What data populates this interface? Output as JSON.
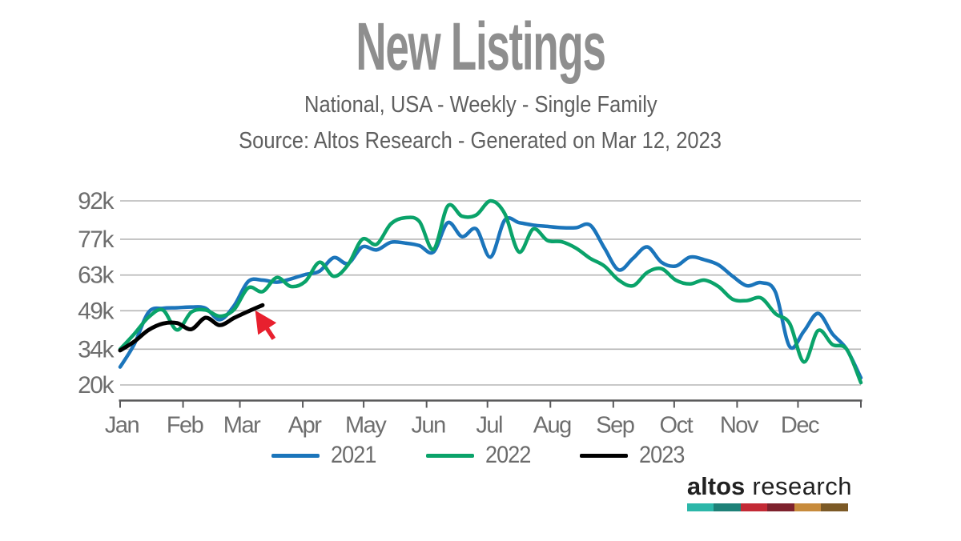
{
  "header": {
    "title": "New Listings",
    "subtitle": "National, USA - Weekly - Single Family",
    "source_line": "Source: Altos Research - Generated on Mar 12, 2023"
  },
  "chart_data": {
    "type": "line",
    "title": "New Listings",
    "subtitle": "National, USA - Weekly - Single Family",
    "source": "Source: Altos Research - Generated on Mar 12, 2023",
    "x_unit": "week of year (values start Jan 1, weekly spacing)",
    "y_unit": "new listings count (thousands)",
    "xtick_labels": [
      "Jan",
      "Feb",
      "Mar",
      "Apr",
      "May",
      "Jun",
      "Jul",
      "Aug",
      "Sep",
      "Oct",
      "Nov",
      "Dec"
    ],
    "ytick_labels": [
      "20k",
      "34k",
      "49k",
      "63k",
      "77k",
      "92k"
    ],
    "ytick_values": [
      20,
      34,
      49,
      63,
      77,
      92
    ],
    "ylim": [
      20,
      92
    ],
    "grid": true,
    "legend_position": "bottom",
    "series": [
      {
        "name": "2021",
        "color": "#1b75bb",
        "values": [
          27,
          36,
          48.5,
          50,
          50.2,
          50.5,
          50,
          45.5,
          51,
          60.5,
          61,
          60.2,
          61.5,
          63.2,
          64.5,
          69.8,
          67.5,
          74,
          72.8,
          75.8,
          75.5,
          74.5,
          72,
          83.5,
          78,
          81,
          70,
          84.5,
          83.5,
          82.5,
          82,
          81.5,
          81.5,
          82.5,
          73.5,
          65,
          69.5,
          74,
          68,
          66.5,
          70,
          69,
          67,
          62.5,
          58.8,
          60,
          56.3,
          35,
          41,
          48,
          40,
          34,
          22.8
        ]
      },
      {
        "name": "2022",
        "color": "#0aa36a",
        "values": [
          34,
          40,
          46.5,
          49.3,
          41.5,
          48.5,
          49.3,
          46.9,
          49.5,
          58,
          56.5,
          62,
          58.5,
          60.5,
          68,
          62.5,
          67,
          77,
          75,
          83,
          85.4,
          84,
          73,
          90,
          86,
          86.5,
          92,
          87,
          72,
          81,
          76.5,
          76,
          73.5,
          69.5,
          66.5,
          61,
          58.8,
          64,
          65.5,
          61,
          59.5,
          61,
          58.5,
          53.5,
          53,
          54,
          47.9,
          44,
          29,
          41.3,
          35.8,
          34,
          20.9
        ]
      },
      {
        "name": "2023",
        "color": "#000000",
        "values": [
          33.5,
          37,
          41.5,
          44,
          44.2,
          41.8,
          46.3,
          43.4,
          46.2,
          48.8,
          51.2
        ]
      }
    ],
    "annotation": {
      "shape": "arrow",
      "color": "#e8202e",
      "target_series": "2023",
      "target": "last-point",
      "meaning": "red arrow pointing at the latest 2023 weekly value"
    }
  },
  "legend": {
    "items": [
      {
        "label": "2021",
        "color": "#1b75bb"
      },
      {
        "label": "2022",
        "color": "#0aa36a"
      },
      {
        "label": "2023",
        "color": "#000000"
      }
    ]
  },
  "footer": {
    "brand_bold": "altos",
    "brand_light": "research",
    "bar_colors": [
      "#2cb7a9",
      "#1e8178",
      "#c32a35",
      "#7e222d",
      "#c78b3c",
      "#7c5a26"
    ]
  },
  "style_colors": {
    "grid": "#b5b5b5",
    "axis": "#58585a",
    "tick_text": "#6e6e6e",
    "title_text": "#8e8e8e",
    "subtitle_text": "#5f5f5f"
  }
}
